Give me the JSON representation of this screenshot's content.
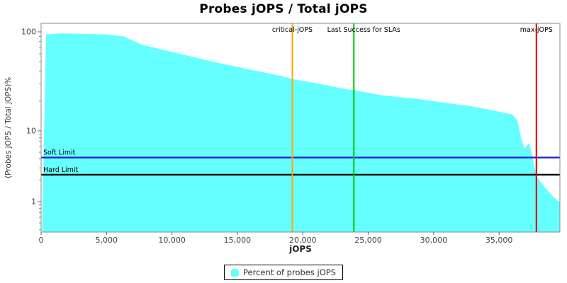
{
  "title": "Probes jOPS / Total jOPS",
  "axes": {
    "x": {
      "label": "jOPS",
      "min": 0,
      "max": 39650,
      "ticks": [
        {
          "v": 0,
          "label": "0"
        },
        {
          "v": 5000,
          "label": "5,000"
        },
        {
          "v": 10000,
          "label": "10,000"
        },
        {
          "v": 15000,
          "label": "15,000"
        },
        {
          "v": 20000,
          "label": "20,000"
        },
        {
          "v": 25000,
          "label": "25,000"
        },
        {
          "v": 30000,
          "label": "30,000"
        },
        {
          "v": 35000,
          "label": "35,000"
        }
      ]
    },
    "y": {
      "label": "(Probes jOPS / Total jOPS)%",
      "scale": "log",
      "ticks": [
        {
          "v": 100,
          "label": "100"
        },
        {
          "v": 10,
          "label": "10"
        },
        {
          "v": 1,
          "label": "1"
        }
      ],
      "minor_ticks": [
        90,
        80,
        70,
        60,
        50,
        40,
        30,
        20,
        9,
        8,
        7,
        6,
        5,
        4,
        3,
        2,
        0.9,
        0.8,
        0.7,
        0.6,
        0.5,
        0.4
      ]
    }
  },
  "chart_data": {
    "type": "area",
    "title": "Probes jOPS / Total jOPS",
    "xlabel": "jOPS",
    "ylabel": "(Probes jOPS / Total jOPS)%",
    "xlim": [
      0,
      39650
    ],
    "ylim": [
      0.4,
      120
    ],
    "y_scale": "log",
    "grid": false,
    "legend_position": "bottom",
    "series": [
      {
        "name": "Percent of probes jOPS",
        "color": "#66FFFF",
        "points": [
          [
            80,
            0.4
          ],
          [
            380,
            94
          ],
          [
            1500,
            96.5
          ],
          [
            3000,
            95.5
          ],
          [
            5000,
            94
          ],
          [
            6300,
            90
          ],
          [
            7700,
            74
          ],
          [
            10400,
            61
          ],
          [
            13100,
            50
          ],
          [
            15800,
            42
          ],
          [
            18500,
            35.5
          ],
          [
            19200,
            33.4
          ],
          [
            21200,
            30
          ],
          [
            23400,
            26.2
          ],
          [
            23900,
            25.8
          ],
          [
            26100,
            22.8
          ],
          [
            28800,
            21
          ],
          [
            31500,
            18.7
          ],
          [
            32800,
            17.8
          ],
          [
            34200,
            16.4
          ],
          [
            36000,
            14.7
          ],
          [
            36400,
            12.8
          ],
          [
            36660,
            8.3
          ],
          [
            36930,
            5.6
          ],
          [
            37310,
            6.8
          ],
          [
            37580,
            4.0
          ],
          [
            37850,
            2.3
          ],
          [
            38280,
            1.8
          ],
          [
            38830,
            1.35
          ],
          [
            39370,
            1.07
          ],
          [
            39640,
            1.0
          ]
        ]
      }
    ],
    "vertical_markers": [
      {
        "label": "critical-jOPS",
        "value": 19200,
        "color": "#FFA500"
      },
      {
        "label": "Last Success for SLAs",
        "value": 23900,
        "color": "#00CC00"
      },
      {
        "label": "max-jOPS",
        "value": 37850,
        "color": "#DD0000"
      }
    ],
    "horizontal_markers": [
      {
        "label": "Soft Limit",
        "value": 4.2,
        "color": "#2222CC"
      },
      {
        "label": "Hard Limit",
        "value": 2.4,
        "color": "#000000"
      }
    ]
  },
  "legend": {
    "label": "Percent of probes jOPS",
    "swatch_color": "#66FFFF"
  },
  "colors": {
    "area": "#66FFFF",
    "critical_line": "#FFA500",
    "sla_line": "#00CC00",
    "max_line": "#DD0000",
    "soft_limit_line": "#2222CC",
    "hard_limit_line": "#000000",
    "plot_border": "#888888",
    "tick_text": "#444444"
  }
}
